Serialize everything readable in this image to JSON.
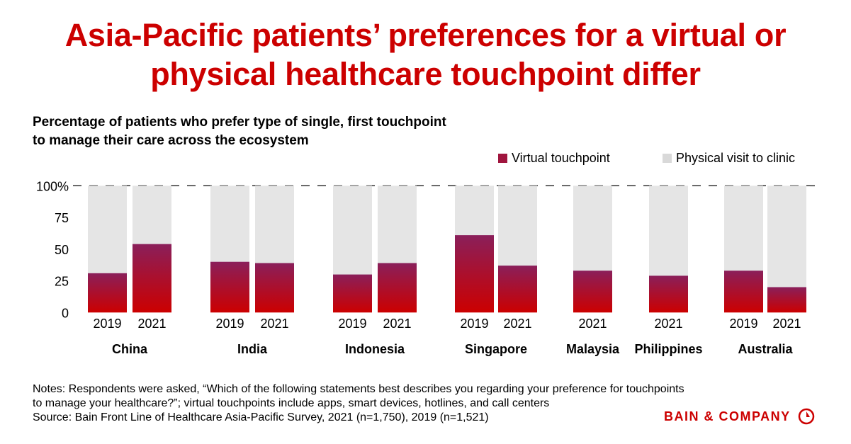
{
  "title_line1": "Asia-Pacific patients’ preferences for a virtual or",
  "title_line2": "physical healthcare touchpoint differ",
  "subtitle_line1": "Percentage of patients who prefer type of single, first touchpoint",
  "subtitle_line2": "to manage their care across the ecosystem",
  "notes_line1": "Notes: Respondents were asked, “Which of the following statements best describes you regarding your preference for touchpoints",
  "notes_line2": "to manage your healthcare?”; virtual touchpoints include apps, smart devices, hotlines, and call centers",
  "source": "Source: Bain Front Line of Healthcare Asia-Pacific Survey, 2021 (n=1,750), 2019 (n=1,521)",
  "logo_text": "BAIN & COMPANY",
  "colors": {
    "virtual_top": "#8a1f5a",
    "virtual_bottom": "#cc0000",
    "physical": "#e5e5e5",
    "title": "#cc0000"
  },
  "chart_data": {
    "type": "bar",
    "stacked": true,
    "ylim": [
      0,
      100
    ],
    "yticks": [
      "0",
      "25",
      "50",
      "75",
      "100%"
    ],
    "legend_position": "top-right",
    "series": [
      {
        "name": "Virtual touchpoint"
      },
      {
        "name": "Physical visit to clinic"
      }
    ],
    "groups": [
      {
        "country": "China",
        "bars": [
          {
            "year": "2019",
            "virtual": 31,
            "physical": 69
          },
          {
            "year": "2021",
            "virtual": 54,
            "physical": 46
          }
        ]
      },
      {
        "country": "India",
        "bars": [
          {
            "year": "2019",
            "virtual": 40,
            "physical": 60
          },
          {
            "year": "2021",
            "virtual": 39,
            "physical": 61
          }
        ]
      },
      {
        "country": "Indonesia",
        "bars": [
          {
            "year": "2019",
            "virtual": 30,
            "physical": 70
          },
          {
            "year": "2021",
            "virtual": 39,
            "physical": 61
          }
        ]
      },
      {
        "country": "Singapore",
        "bars": [
          {
            "year": "2019",
            "virtual": 61,
            "physical": 39
          },
          {
            "year": "2021",
            "virtual": 37,
            "physical": 63
          }
        ]
      },
      {
        "country": "Malaysia",
        "bars": [
          {
            "year": "2021",
            "virtual": 33,
            "physical": 67
          }
        ]
      },
      {
        "country": "Philippines",
        "bars": [
          {
            "year": "2021",
            "virtual": 29,
            "physical": 71
          }
        ]
      },
      {
        "country": "Australia",
        "bars": [
          {
            "year": "2019",
            "virtual": 33,
            "physical": 67
          },
          {
            "year": "2021",
            "virtual": 20,
            "physical": 80
          }
        ]
      }
    ]
  }
}
